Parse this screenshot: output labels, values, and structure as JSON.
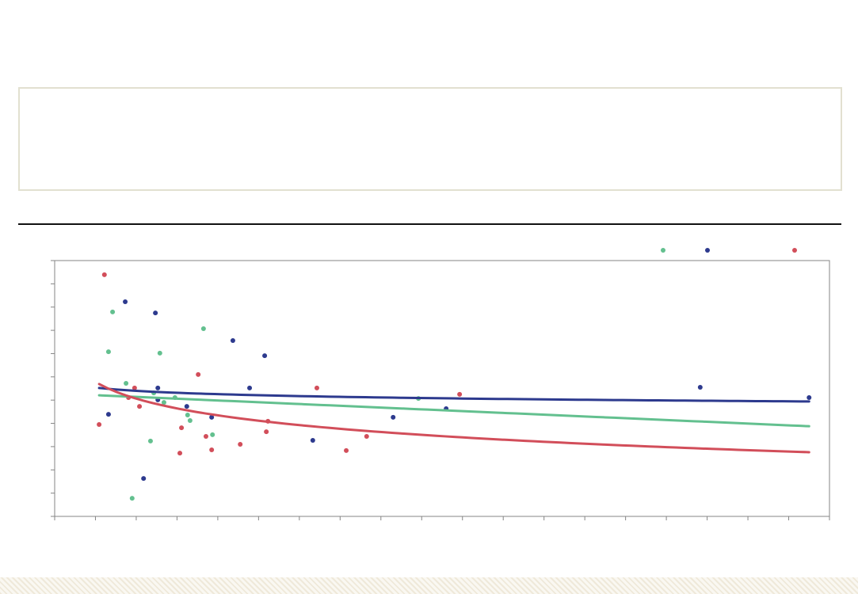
{
  "colors": {
    "series_1": "#63c08f",
    "series_2": "#2d3a8e",
    "series_3": "#d24e5a",
    "axis": "#858585",
    "plot_background": "#ffffff"
  },
  "chart_data": {
    "type": "scatter",
    "title": "",
    "xlabel": "",
    "ylabel": "",
    "xlim": [
      0,
      19
    ],
    "ylim": [
      0,
      11
    ],
    "x_tick_step": 1,
    "y_tick_step": 1,
    "tick_labels": false,
    "grid": false,
    "legend": "top-right",
    "series": [
      {
        "color": "#63c08f",
        "x": [
          1.32,
          1.42,
          1.75,
          1.9,
          2.35,
          2.43,
          2.58,
          2.68,
          2.95,
          3.26,
          3.32,
          3.65,
          3.87,
          8.92
        ],
        "y": [
          7.08,
          8.79,
          5.72,
          0.78,
          3.24,
          5.31,
          7.02,
          4.9,
          5.11,
          4.36,
          4.12,
          8.07,
          3.51,
          5.07
        ],
        "trendline": {
          "model": "linear",
          "a": 5.29,
          "b": -0.0764,
          "x_range": [
            1.09,
            18.5
          ]
        }
      },
      {
        "color": "#2d3a8e",
        "x": [
          1.32,
          1.73,
          2.18,
          2.47,
          2.53,
          2.53,
          3.24,
          3.85,
          4.37,
          4.78,
          5.15,
          6.33,
          8.3,
          9.6,
          15.83,
          18.5
        ],
        "y": [
          4.39,
          9.23,
          1.63,
          8.75,
          5.52,
          5.01,
          4.73,
          4.26,
          7.56,
          5.52,
          6.91,
          3.27,
          4.26,
          4.63,
          5.55,
          5.11
        ],
        "trendline": {
          "model": "log",
          "a": 5.54,
          "b": -0.205,
          "x_range": [
            1.09,
            18.5
          ]
        }
      },
      {
        "color": "#d24e5a",
        "x": [
          1.09,
          1.22,
          1.81,
          1.96,
          2.08,
          3.07,
          3.11,
          3.52,
          3.71,
          3.85,
          4.55,
          5.19,
          5.23,
          6.43,
          7.15,
          7.65,
          9.93
        ],
        "y": [
          3.95,
          10.39,
          5.11,
          5.52,
          4.73,
          2.72,
          3.81,
          6.1,
          3.44,
          2.86,
          3.1,
          3.64,
          4.09,
          5.52,
          2.83,
          3.44,
          5.25
        ],
        "trendline": {
          "model": "log",
          "a": 5.78,
          "b": -1.035,
          "x_range": [
            1.09,
            18.5
          ]
        }
      }
    ]
  }
}
